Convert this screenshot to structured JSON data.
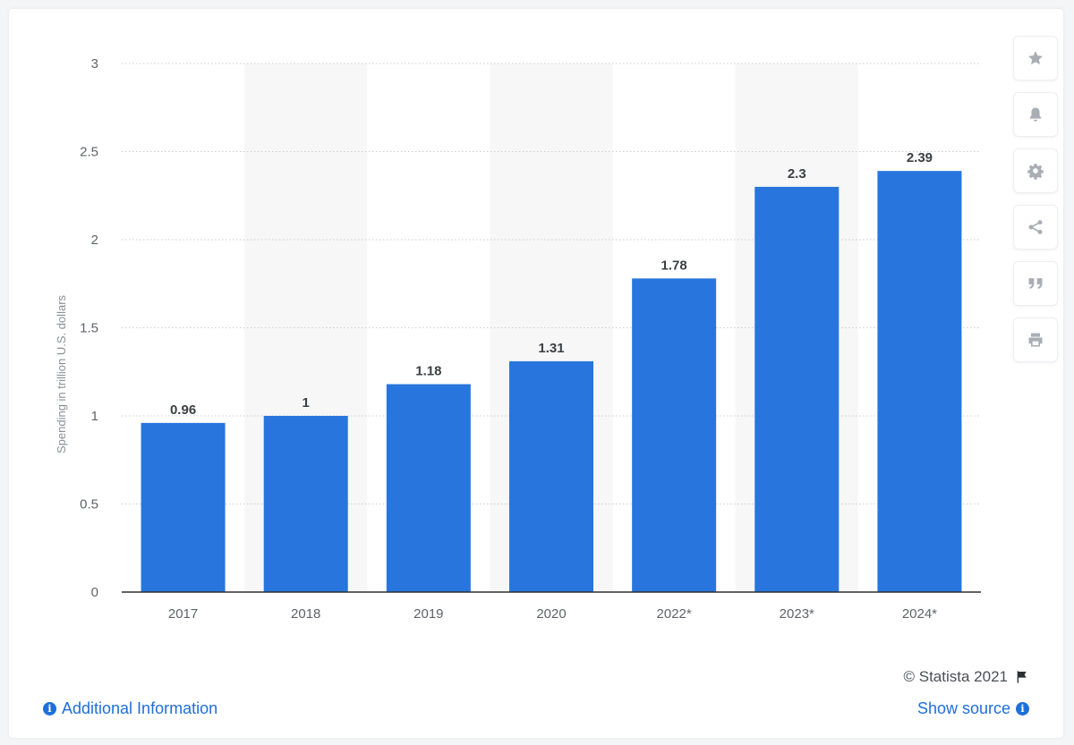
{
  "chart_data": {
    "type": "bar",
    "categories": [
      "2017",
      "2018",
      "2019",
      "2020",
      "2022*",
      "2023*",
      "2024*"
    ],
    "values": [
      0.96,
      1,
      1.18,
      1.31,
      1.78,
      2.3,
      2.39
    ],
    "value_labels": [
      "0.96",
      "1",
      "1.18",
      "1.31",
      "1.78",
      "2.3",
      "2.39"
    ],
    "title": "",
    "xlabel": "",
    "ylabel": "Spending in trillion U.S. dollars",
    "ylim": [
      0,
      3
    ],
    "yticks": [
      0,
      0.5,
      1,
      1.5,
      2,
      2.5,
      3
    ],
    "ytick_labels": [
      "0",
      "0.5",
      "1",
      "1.5",
      "2",
      "2.5",
      "3"
    ],
    "grid": true,
    "bar_color": "#2876dd",
    "alternate_band_color": "#f7f7f8"
  },
  "toolbar": {
    "icons": [
      "star-icon",
      "bell-icon",
      "gear-icon",
      "share-icon",
      "quote-icon",
      "print-icon"
    ]
  },
  "footer": {
    "copyright": "© Statista 2021",
    "additional_info": "Additional Information",
    "show_source": "Show source"
  }
}
